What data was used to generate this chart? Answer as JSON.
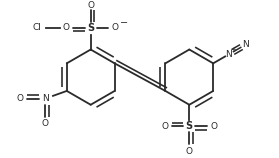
{
  "bg_color": "#ffffff",
  "line_color": "#2a2a2a",
  "lw": 1.3,
  "figsize": [
    2.79,
    1.58
  ],
  "dpi": 100,
  "xlim": [
    0,
    279
  ],
  "ylim": [
    0,
    158
  ]
}
